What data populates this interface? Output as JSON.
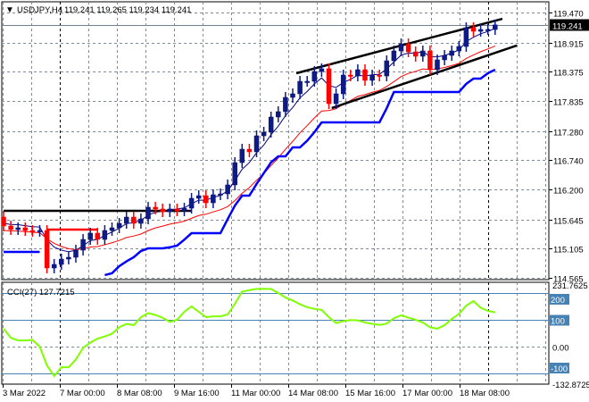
{
  "header": {
    "symbol": "USDJPY,H4",
    "ohlc": "119.241 119.265 119.234 119.241",
    "collapse_icon": "triangle-down-icon"
  },
  "price_axis": {
    "ticks": [
      "119.470",
      "118.915",
      "118.375",
      "117.835",
      "117.280",
      "116.740",
      "116.200",
      "115.645",
      "115.105",
      "114.565"
    ],
    "tick_values": [
      119.47,
      118.915,
      118.375,
      117.835,
      117.28,
      116.74,
      116.2,
      115.645,
      115.105,
      114.565
    ],
    "current_price_label": "119.241",
    "current_price": 119.241,
    "range": [
      114.565,
      119.47
    ]
  },
  "time_axis": {
    "labels": [
      "3 Mar 2022",
      "7 Mar 00:00",
      "8 Mar 08:00",
      "9 Mar 16:00",
      "11 Mar 00:00",
      "14 Mar 08:00",
      "15 Mar 16:00",
      "17 Mar 00:00",
      "18 Mar 08:00"
    ]
  },
  "chart_data": {
    "type": "candlestick",
    "symbol": "USDJPY",
    "timeframe": "H4",
    "open": [
      115.688,
      115.523,
      115.457,
      115.49,
      115.44,
      115.424,
      115.44,
      114.747,
      114.813,
      114.912,
      114.945,
      115.077,
      115.275,
      115.391,
      115.275,
      115.44,
      115.49,
      115.572,
      115.688,
      115.572,
      115.655,
      115.87,
      115.837,
      115.787,
      115.837,
      115.804,
      115.853,
      116.035,
      116.084,
      115.952,
      116.101,
      116.117,
      116.283,
      116.695,
      116.943,
      116.894,
      117.191,
      117.257,
      117.538,
      117.637,
      117.901,
      117.967,
      118.198,
      118.198,
      118.38,
      118.43,
      117.785,
      117.967,
      118.314,
      118.297,
      118.413,
      118.215,
      118.314,
      118.297,
      118.578,
      118.76,
      118.892,
      118.743,
      118.661,
      118.76,
      118.413,
      118.595,
      118.677,
      118.76,
      118.842,
      119.189,
      119.123,
      119.156,
      119.156
    ],
    "close": [
      115.523,
      115.457,
      115.49,
      115.44,
      115.424,
      115.44,
      114.747,
      114.813,
      114.912,
      114.945,
      115.077,
      115.275,
      115.391,
      115.275,
      115.44,
      115.49,
      115.572,
      115.688,
      115.572,
      115.655,
      115.87,
      115.837,
      115.787,
      115.837,
      115.804,
      115.853,
      116.035,
      116.084,
      115.952,
      116.101,
      116.117,
      116.283,
      116.695,
      116.943,
      116.894,
      117.191,
      117.257,
      117.538,
      117.637,
      117.901,
      117.967,
      118.198,
      118.198,
      118.38,
      118.43,
      117.785,
      117.967,
      118.314,
      118.297,
      118.413,
      118.215,
      118.314,
      118.297,
      118.578,
      118.76,
      118.892,
      118.743,
      118.661,
      118.76,
      118.413,
      118.595,
      118.677,
      118.76,
      118.842,
      119.189,
      119.123,
      119.156,
      119.156,
      119.241
    ],
    "lower_band": [
      115.044,
      115.044,
      115.044,
      115.044,
      115.044,
      115.044,
      null,
      null,
      null,
      null,
      null,
      null,
      null,
      null,
      114.615,
      114.65,
      114.78,
      114.87,
      114.945,
      115.06,
      115.11,
      115.11,
      115.11,
      115.13,
      115.16,
      115.27,
      115.39,
      115.39,
      115.39,
      115.39,
      115.39,
      115.65,
      115.9,
      116.084,
      116.084,
      116.3,
      116.5,
      116.7,
      116.811,
      116.811,
      116.976,
      116.976,
      117.1,
      117.257,
      117.439,
      117.439,
      117.439,
      117.439,
      117.439,
      117.439,
      117.439,
      117.439,
      117.439,
      117.7,
      118.0,
      118.0,
      118.0,
      118.0,
      118.0,
      118.0,
      118.0,
      118.0,
      118.0,
      118.0,
      118.15,
      118.248,
      118.248,
      118.347,
      118.413
    ],
    "horizontal_lines": [
      {
        "color": "#000000",
        "price": 115.804,
        "from": 0,
        "to": 26
      },
      {
        "color": "#ff0000",
        "price": 115.457,
        "from": 6,
        "to": 13
      }
    ],
    "trendlines": [
      {
        "color": "#000000",
        "from": [
          40.5,
          118.347
        ],
        "to": [
          69,
          119.354
        ]
      },
      {
        "color": "#000000",
        "from": [
          45.4,
          117.703
        ],
        "to": [
          71,
          118.859
        ]
      }
    ],
    "ylim": [
      114.565,
      119.47
    ],
    "grid": true
  },
  "cci": {
    "label": "CCI(27) 127.7215",
    "values": [
      67,
      33,
      23,
      23,
      25,
      0,
      -70,
      -110,
      -77,
      -77,
      -48,
      -5,
      15,
      30,
      38,
      48,
      72,
      85,
      80,
      110,
      125,
      118,
      108,
      92,
      100,
      130,
      150,
      130,
      110,
      113,
      113,
      120,
      160,
      205,
      211,
      215,
      216,
      215,
      200,
      183,
      172,
      158,
      147,
      141,
      137,
      110,
      88,
      95,
      99,
      98,
      90,
      85,
      81,
      86,
      106,
      117,
      108,
      100,
      90,
      72,
      67,
      80,
      103,
      122,
      153,
      170,
      145,
      133,
      128
    ],
    "axis_max_label": "231.7625",
    "axis_min_label": "-132.8725",
    "range": [
      -132.8725,
      231.7625
    ],
    "levels": [
      {
        "label": "200",
        "value": 200
      },
      {
        "label": "100",
        "value": 100
      },
      {
        "label": "-100",
        "value": -100
      }
    ],
    "zero_label": "0.00",
    "line_color": "#7fff00",
    "level_color": "#4682b4"
  },
  "colors": {
    "bull": "#0d1a8a",
    "bear": "#ff0000",
    "fast_ma": "#000080",
    "slow_ma": "#ff0000",
    "lower_band": "#0000ff",
    "grid": "#7f8c99"
  }
}
